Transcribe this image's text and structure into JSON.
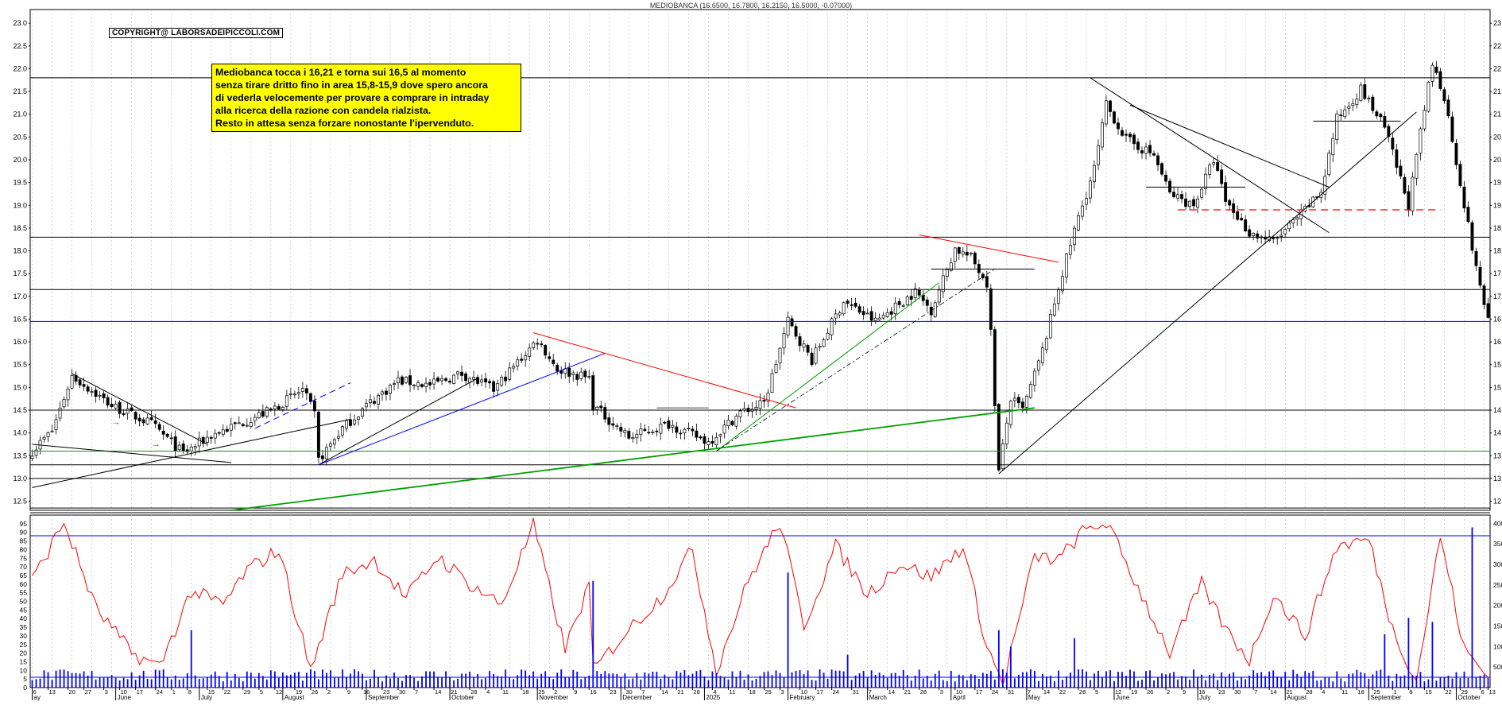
{
  "header": {
    "title": "MEDIOBANCA (16.6500, 16.7800, 16.2150, 16.5000, -0.07000)",
    "copyright": "COPYRIGHT@ LABORSADEIPICCOLI.COM"
  },
  "note": {
    "lines": [
      "Mediobanca tocca i 16,21 e torna sui 16,5 al momento",
      "senza tirare dritto fino in area 15,8-15,9 dove spero ancora",
      "di vederla velocemente per provare a comprare in intraday",
      "alla ricerca della razione con candela rialzista.",
      "Resto in attesa senza forzare nonostante l'ipervenduto."
    ]
  },
  "colors": {
    "candle": "#000000",
    "red_line": "#ff0000",
    "blue_line": "#0000ff",
    "green_line": "#00a000",
    "oscillator": "#ff0000",
    "volume": "#0000ff"
  },
  "chart_data": [
    {
      "type": "candlestick",
      "ylim": [
        12.3,
        23.3
      ],
      "yticks": [
        12.5,
        13.0,
        13.5,
        14.0,
        14.5,
        15.0,
        15.5,
        16.0,
        16.5,
        17.0,
        17.5,
        18.0,
        18.5,
        19.0,
        19.5,
        20.0,
        20.5,
        21.0,
        21.5,
        22.0,
        22.5,
        23.0
      ],
      "last": {
        "open": 16.65,
        "high": 16.78,
        "low": 16.215,
        "close": 16.5,
        "change": -0.07
      },
      "horizontal_levels": [
        {
          "value": 21.8,
          "color": "black"
        },
        {
          "value": 18.3,
          "color": "black"
        },
        {
          "value": 17.15,
          "color": "black"
        },
        {
          "value": 16.45,
          "color": "blue"
        },
        {
          "value": 14.5,
          "color": "black"
        },
        {
          "value": 13.6,
          "color": "green"
        },
        {
          "value": 13.3,
          "color": "black"
        },
        {
          "value": 13.0,
          "color": "black"
        },
        {
          "value": 12.35,
          "color": "black"
        }
      ],
      "anchors": [
        {
          "i": 0,
          "c": 13.6
        },
        {
          "i": 5,
          "c": 14.05
        },
        {
          "i": 10,
          "c": 15.25
        },
        {
          "i": 20,
          "c": 14.6
        },
        {
          "i": 30,
          "c": 14.2
        },
        {
          "i": 38,
          "c": 13.55
        },
        {
          "i": 45,
          "c": 13.95
        },
        {
          "i": 52,
          "c": 14.2
        },
        {
          "i": 60,
          "c": 14.5
        },
        {
          "i": 68,
          "c": 14.95
        },
        {
          "i": 71,
          "c": 14.4
        },
        {
          "i": 72,
          "c": 13.4
        },
        {
          "i": 78,
          "c": 14.1
        },
        {
          "i": 84,
          "c": 14.6
        },
        {
          "i": 92,
          "c": 15.15
        },
        {
          "i": 100,
          "c": 15.05
        },
        {
          "i": 108,
          "c": 15.3
        },
        {
          "i": 116,
          "c": 14.95
        },
        {
          "i": 124,
          "c": 15.75
        },
        {
          "i": 127,
          "c": 16.05
        },
        {
          "i": 132,
          "c": 15.4
        },
        {
          "i": 140,
          "c": 15.2
        },
        {
          "i": 141,
          "c": 14.6
        },
        {
          "i": 150,
          "c": 13.9
        },
        {
          "i": 160,
          "c": 14.2
        },
        {
          "i": 170,
          "c": 13.8
        },
        {
          "i": 178,
          "c": 14.45
        },
        {
          "i": 184,
          "c": 14.65
        },
        {
          "i": 190,
          "c": 16.45
        },
        {
          "i": 196,
          "c": 15.6
        },
        {
          "i": 204,
          "c": 16.9
        },
        {
          "i": 212,
          "c": 16.45
        },
        {
          "i": 222,
          "c": 17.1
        },
        {
          "i": 226,
          "c": 16.7
        },
        {
          "i": 232,
          "c": 18.05
        },
        {
          "i": 236,
          "c": 17.85
        },
        {
          "i": 240,
          "c": 17.3
        },
        {
          "i": 241,
          "c": 16.2
        },
        {
          "i": 243,
          "c": 13.15
        },
        {
          "i": 246,
          "c": 14.75
        },
        {
          "i": 249,
          "c": 14.5
        },
        {
          "i": 254,
          "c": 15.8
        },
        {
          "i": 258,
          "c": 17.2
        },
        {
          "i": 262,
          "c": 18.45
        },
        {
          "i": 267,
          "c": 19.8
        },
        {
          "i": 270,
          "c": 21.2
        },
        {
          "i": 275,
          "c": 20.45
        },
        {
          "i": 282,
          "c": 20.1
        },
        {
          "i": 286,
          "c": 19.25
        },
        {
          "i": 292,
          "c": 19.0
        },
        {
          "i": 297,
          "c": 20.0
        },
        {
          "i": 300,
          "c": 19.1
        },
        {
          "i": 306,
          "c": 18.4
        },
        {
          "i": 312,
          "c": 18.2
        },
        {
          "i": 318,
          "c": 18.7
        },
        {
          "i": 324,
          "c": 19.3
        },
        {
          "i": 328,
          "c": 20.9
        },
        {
          "i": 334,
          "c": 21.55
        },
        {
          "i": 340,
          "c": 20.7
        },
        {
          "i": 346,
          "c": 19.0
        },
        {
          "i": 350,
          "c": 21.1
        },
        {
          "i": 352,
          "c": 22.1
        },
        {
          "i": 355,
          "c": 21.4
        },
        {
          "i": 359,
          "c": 19.5
        },
        {
          "i": 363,
          "c": 17.6
        },
        {
          "i": 366,
          "c": 16.5
        }
      ]
    },
    {
      "type": "line",
      "name": "oscillator",
      "ylim": [
        0,
        100
      ],
      "yticks": [
        0,
        5,
        10,
        15,
        20,
        25,
        30,
        35,
        40,
        45,
        50,
        55,
        60,
        65,
        70,
        75,
        80,
        85,
        90,
        95
      ],
      "levels": [
        88,
        6
      ],
      "anchors": [
        {
          "i": 0,
          "v": 62
        },
        {
          "i": 8,
          "v": 96
        },
        {
          "i": 16,
          "v": 46
        },
        {
          "i": 25,
          "v": 20
        },
        {
          "i": 32,
          "v": 12
        },
        {
          "i": 40,
          "v": 56
        },
        {
          "i": 48,
          "v": 48
        },
        {
          "i": 54,
          "v": 68
        },
        {
          "i": 62,
          "v": 80
        },
        {
          "i": 70,
          "v": 10
        },
        {
          "i": 78,
          "v": 66
        },
        {
          "i": 86,
          "v": 74
        },
        {
          "i": 94,
          "v": 52
        },
        {
          "i": 102,
          "v": 76
        },
        {
          "i": 110,
          "v": 60
        },
        {
          "i": 118,
          "v": 48
        },
        {
          "i": 126,
          "v": 94
        },
        {
          "i": 134,
          "v": 22
        },
        {
          "i": 140,
          "v": 60
        },
        {
          "i": 141,
          "v": 10
        },
        {
          "i": 150,
          "v": 34
        },
        {
          "i": 158,
          "v": 52
        },
        {
          "i": 166,
          "v": 80
        },
        {
          "i": 172,
          "v": 10
        },
        {
          "i": 180,
          "v": 62
        },
        {
          "i": 188,
          "v": 96
        },
        {
          "i": 194,
          "v": 36
        },
        {
          "i": 202,
          "v": 82
        },
        {
          "i": 210,
          "v": 54
        },
        {
          "i": 218,
          "v": 72
        },
        {
          "i": 226,
          "v": 64
        },
        {
          "i": 234,
          "v": 82
        },
        {
          "i": 240,
          "v": 24
        },
        {
          "i": 244,
          "v": 2
        },
        {
          "i": 252,
          "v": 76
        },
        {
          "i": 258,
          "v": 74
        },
        {
          "i": 264,
          "v": 90
        },
        {
          "i": 270,
          "v": 96
        },
        {
          "i": 278,
          "v": 58
        },
        {
          "i": 286,
          "v": 20
        },
        {
          "i": 294,
          "v": 60
        },
        {
          "i": 300,
          "v": 34
        },
        {
          "i": 306,
          "v": 16
        },
        {
          "i": 312,
          "v": 54
        },
        {
          "i": 320,
          "v": 30
        },
        {
          "i": 328,
          "v": 82
        },
        {
          "i": 336,
          "v": 86
        },
        {
          "i": 342,
          "v": 34
        },
        {
          "i": 348,
          "v": 4
        },
        {
          "i": 354,
          "v": 88
        },
        {
          "i": 360,
          "v": 22
        },
        {
          "i": 366,
          "v": 6
        }
      ]
    },
    {
      "type": "bar",
      "name": "volume",
      "ylim": [
        0,
        42000
      ],
      "yticks": [
        5000,
        10000,
        15000,
        20000,
        25000,
        30000,
        35000,
        40000
      ],
      "spikes": [
        {
          "i": 40,
          "v": 14000
        },
        {
          "i": 141,
          "v": 26000
        },
        {
          "i": 190,
          "v": 28000
        },
        {
          "i": 205,
          "v": 8000
        },
        {
          "i": 243,
          "v": 14000
        },
        {
          "i": 246,
          "v": 10000
        },
        {
          "i": 262,
          "v": 12000
        },
        {
          "i": 340,
          "v": 13000
        },
        {
          "i": 346,
          "v": 17000
        },
        {
          "i": 352,
          "v": 16000
        },
        {
          "i": 362,
          "v": 39000
        }
      ]
    }
  ],
  "xaxis": {
    "months": [
      {
        "label": "ay",
        "i": 0
      },
      {
        "label": "June",
        "i": 21
      },
      {
        "label": "July",
        "i": 42
      },
      {
        "label": "August",
        "i": 63
      },
      {
        "label": "September",
        "i": 84
      },
      {
        "label": "October",
        "i": 105
      },
      {
        "label": "November",
        "i": 127
      },
      {
        "label": "December",
        "i": 148
      },
      {
        "label": "2025",
        "i": 169
      },
      {
        "label": "February",
        "i": 190
      },
      {
        "label": "March",
        "i": 210
      },
      {
        "label": "April",
        "i": 231
      },
      {
        "label": "May",
        "i": 250
      },
      {
        "label": "June",
        "i": 272
      },
      {
        "label": "July",
        "i": 293
      },
      {
        "label": "August",
        "i": 315
      },
      {
        "label": "September",
        "i": 336
      },
      {
        "label": "October",
        "i": 358
      }
    ],
    "days": [
      "6",
      "13",
      "20",
      "27",
      "3",
      "10",
      "17",
      "24",
      "1",
      "8",
      "15",
      "22",
      "29",
      "5",
      "12",
      "19",
      "26",
      "2",
      "9",
      "16",
      "23",
      "30",
      "7",
      "14",
      "21",
      "28",
      "4",
      "11",
      "18",
      "25",
      "2",
      "9",
      "16",
      "23",
      "30",
      "7",
      "14",
      "21",
      "28",
      "4",
      "11",
      "18",
      "25",
      "3",
      "10",
      "17",
      "24",
      "31",
      "7",
      "14",
      "21",
      "28",
      "3",
      "10",
      "17",
      "24",
      "31",
      "7",
      "14",
      "22",
      "28",
      "5",
      "12",
      "19",
      "26",
      "2",
      "9",
      "16",
      "23",
      "30",
      "7",
      "14",
      "21",
      "28",
      "4",
      "11",
      "18",
      "25",
      "1",
      "8",
      "15",
      "22",
      "29",
      "6",
      "13"
    ]
  }
}
